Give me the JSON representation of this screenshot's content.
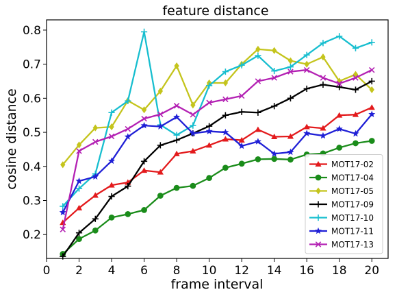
{
  "chart_data": {
    "type": "line",
    "title": "feature distance",
    "xlabel": "frame interval",
    "ylabel": "cosine distance",
    "xlim": [
      0,
      21
    ],
    "ylim": [
      0.13,
      0.83
    ],
    "xticks": [
      "0",
      "2",
      "4",
      "6",
      "8",
      "10",
      "12",
      "14",
      "16",
      "18",
      "20"
    ],
    "yticks": [
      "0.2",
      "0.3",
      "0.4",
      "0.5",
      "0.6",
      "0.7",
      "0.8"
    ],
    "grid": false,
    "legend_position": "lower-right",
    "x": [
      1,
      2,
      3,
      4,
      5,
      6,
      7,
      8,
      9,
      10,
      11,
      12,
      13,
      14,
      15,
      16,
      17,
      18,
      19,
      20
    ],
    "series": [
      {
        "name": "MOT17-02",
        "color": "#e31a1c",
        "marker": "triangle",
        "values": [
          0.235,
          0.278,
          0.315,
          0.345,
          0.353,
          0.388,
          0.383,
          0.437,
          0.445,
          0.462,
          0.48,
          0.477,
          0.508,
          0.487,
          0.488,
          0.516,
          0.512,
          0.55,
          0.552,
          0.573
        ]
      },
      {
        "name": "MOT17-04",
        "color": "#1a8c1a",
        "marker": "circle",
        "values": [
          0.143,
          0.187,
          0.212,
          0.25,
          0.26,
          0.272,
          0.314,
          0.337,
          0.343,
          0.366,
          0.396,
          0.408,
          0.421,
          0.422,
          0.42,
          0.435,
          0.438,
          0.455,
          0.468,
          0.475
        ]
      },
      {
        "name": "MOT17-05",
        "color": "#c4c41c",
        "marker": "diamond",
        "values": [
          0.405,
          0.463,
          0.513,
          0.516,
          0.593,
          0.566,
          0.621,
          0.695,
          0.58,
          0.645,
          0.645,
          0.7,
          0.744,
          0.74,
          0.71,
          0.7,
          0.721,
          0.65,
          0.67,
          0.625
        ]
      },
      {
        "name": "MOT17-09",
        "color": "#000000",
        "marker": "plus",
        "values": [
          0.136,
          0.205,
          0.246,
          0.312,
          0.342,
          0.415,
          0.462,
          0.477,
          0.497,
          0.518,
          0.55,
          0.56,
          0.558,
          0.577,
          0.6,
          0.628,
          0.64,
          0.633,
          0.625,
          0.65
        ]
      },
      {
        "name": "MOT17-10",
        "color": "#17becf",
        "marker": "plus",
        "values": [
          0.283,
          0.335,
          0.378,
          0.558,
          0.592,
          0.795,
          0.522,
          0.492,
          0.52,
          0.637,
          0.678,
          0.697,
          0.725,
          0.68,
          0.692,
          0.727,
          0.762,
          0.782,
          0.747,
          0.764
        ]
      },
      {
        "name": "MOT17-11",
        "color": "#1f1fd6",
        "marker": "star",
        "values": [
          0.265,
          0.357,
          0.37,
          0.416,
          0.487,
          0.52,
          0.517,
          0.545,
          0.497,
          0.503,
          0.5,
          0.46,
          0.473,
          0.437,
          0.442,
          0.497,
          0.49,
          0.51,
          0.496,
          0.553
        ]
      },
      {
        "name": "MOT17-13",
        "color": "#b320b3",
        "marker": "x",
        "values": [
          0.215,
          0.445,
          0.472,
          0.488,
          0.51,
          0.54,
          0.553,
          0.578,
          0.552,
          0.587,
          0.597,
          0.607,
          0.65,
          0.66,
          0.678,
          0.683,
          0.66,
          0.643,
          0.66,
          0.683
        ]
      }
    ]
  }
}
